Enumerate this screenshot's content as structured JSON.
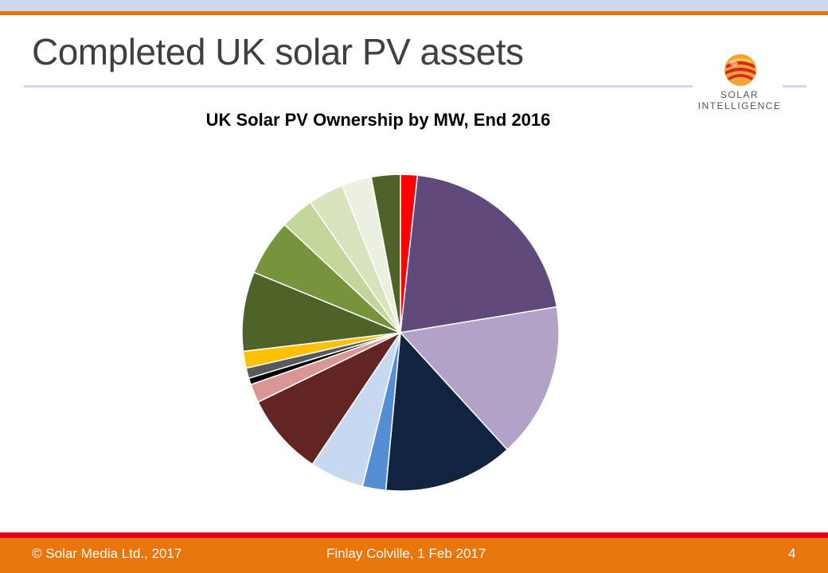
{
  "slide": {
    "title": "Completed UK solar PV assets",
    "logo_text_line1": "SOLAR",
    "logo_text_line2": "INTELLIGENCE"
  },
  "footer": {
    "copyright": "© Solar Media Ltd., 2017",
    "author_date": "Finlay Colville, 1 Feb 2017",
    "page_number": "4"
  },
  "chart_data": {
    "type": "pie",
    "title": "UK Solar PV Ownership by MW, End 2016",
    "start_angle_deg": 0,
    "direction": "clockwise",
    "legend": "none",
    "values": [
      1.8,
      21.7,
      16.6,
      13.9,
      2.5,
      5.8,
      8.8,
      2.0,
      0.7,
      1.1,
      1.8,
      8.5,
      6.0,
      3.6,
      3.8,
      3.2,
      3.1
    ],
    "colors": [
      "#ff0000",
      "#604a7b",
      "#b3a2c7",
      "#10243f",
      "#558ed5",
      "#c6d9f1",
      "#632523",
      "#d99694",
      "#000000",
      "#595959",
      "#ffc000",
      "#4f6228",
      "#77933c",
      "#c3d69b",
      "#d7e4bd",
      "#ebf1de",
      "#4f6228"
    ]
  }
}
